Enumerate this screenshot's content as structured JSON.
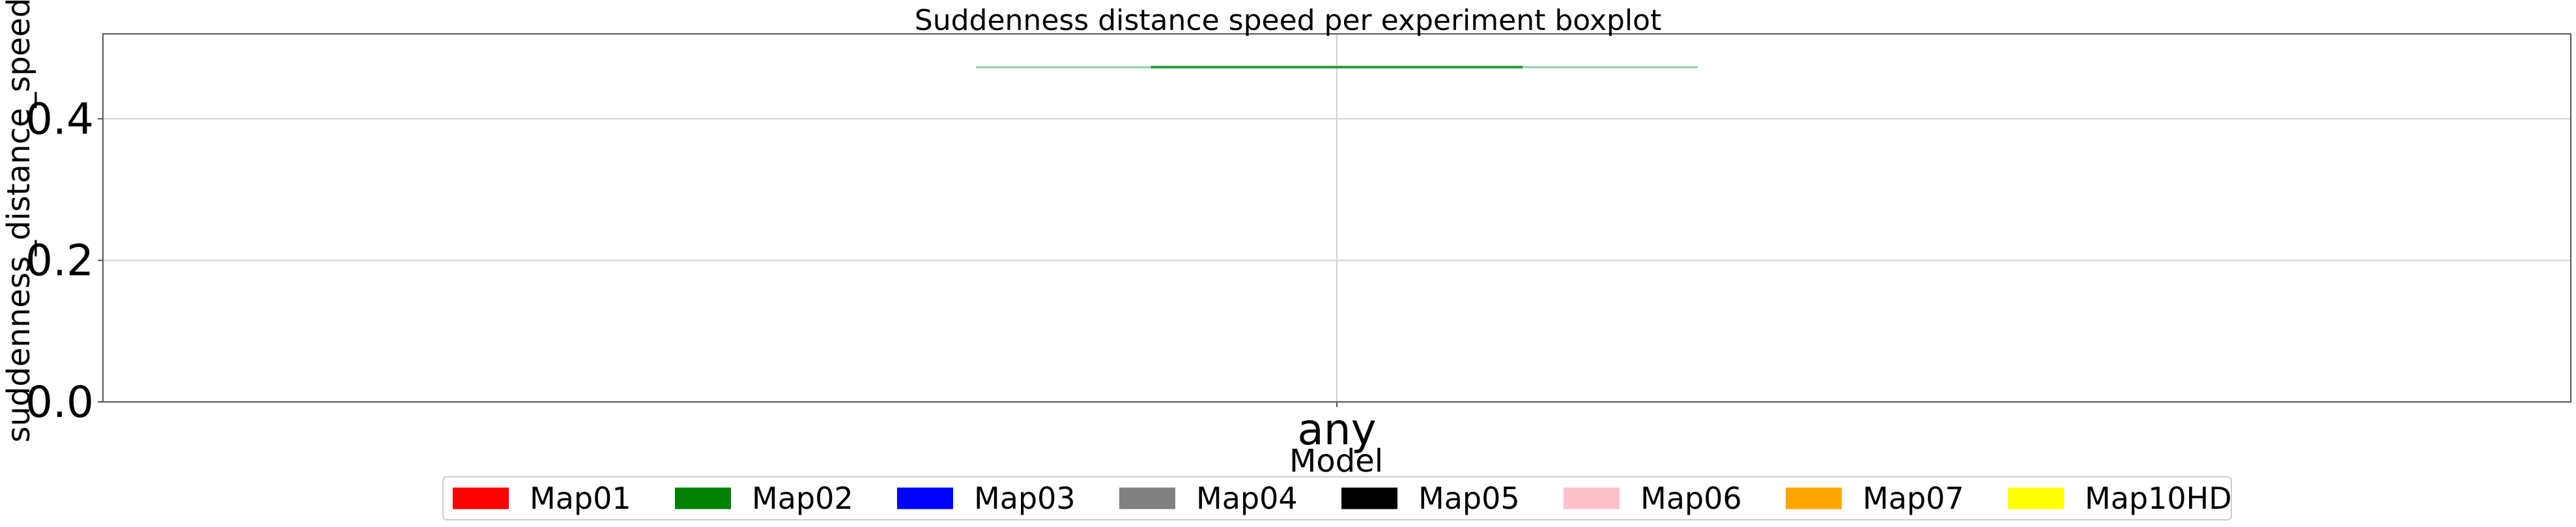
{
  "chart_data": {
    "type": "boxplot",
    "title": "Suddenness distance speed per experiment boxplot",
    "xlabel": "Model",
    "ylabel": "suddenness_distance_speed",
    "categories": [
      "any"
    ],
    "ylim": [
      0,
      0.52
    ],
    "yticks": [
      {
        "value": 0.0,
        "label": "0.0"
      },
      {
        "value": 0.2,
        "label": "0.2"
      },
      {
        "value": 0.4,
        "label": "0.4"
      }
    ],
    "grid": true,
    "series": [
      {
        "category": "any",
        "q1": 0.473,
        "median": 0.473,
        "q3": 0.473,
        "whisker_low": 0.473,
        "whisker_high": 0.473,
        "color": "#2ca02c"
      }
    ],
    "legend": {
      "placement": "bottom-center",
      "entries": [
        {
          "label": "Map01",
          "color": "#ff0000"
        },
        {
          "label": "Map02",
          "color": "#008000"
        },
        {
          "label": "Map03",
          "color": "#0000ff"
        },
        {
          "label": "Map04",
          "color": "#808080"
        },
        {
          "label": "Map05",
          "color": "#000000"
        },
        {
          "label": "Map06",
          "color": "#ffc0cb"
        },
        {
          "label": "Map07",
          "color": "#ffa500"
        },
        {
          "label": "Map10HD",
          "color": "#ffff00"
        }
      ]
    }
  }
}
